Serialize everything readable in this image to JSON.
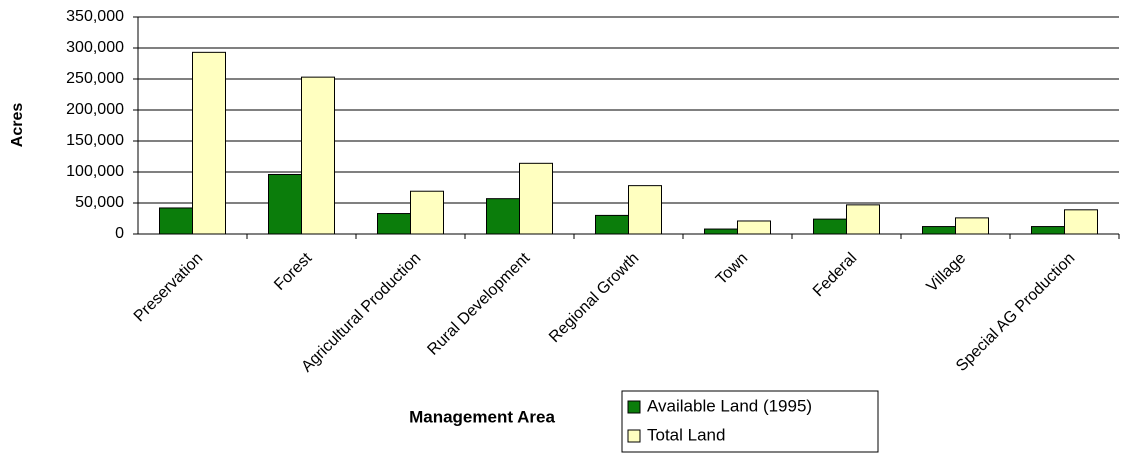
{
  "chart_data": {
    "type": "bar",
    "xlabel": "Management Area",
    "ylabel": "Acres",
    "categories": [
      "Preservation",
      "Forest",
      "Agricultural Production",
      "Rural Development",
      "Regional Growth",
      "Town",
      "Federal",
      "Village",
      "Special AG Production"
    ],
    "series": [
      {
        "name": "Available Land (1995)",
        "color": "#0b7d0b",
        "values": [
          42000,
          96000,
          33000,
          57000,
          30000,
          8000,
          24000,
          12000,
          12000
        ]
      },
      {
        "name": "Total Land",
        "color": "#ffffc0",
        "values": [
          293000,
          253000,
          69000,
          114000,
          78000,
          21000,
          47000,
          26000,
          39000
        ]
      }
    ],
    "ylim": [
      0,
      350000
    ],
    "yticks": [
      0,
      {
        "value": 50000,
        "label": "50,000"
      },
      {
        "value": 100000,
        "label": "100,000"
      },
      {
        "value": 150000,
        "label": "150,000"
      },
      {
        "value": 200000,
        "label": "200,000"
      },
      {
        "value": 250000,
        "label": "250,000"
      },
      {
        "value": 300000,
        "label": "300,000"
      },
      {
        "value": 350000,
        "label": "350,000"
      }
    ],
    "grid": true,
    "legend": "bottom"
  }
}
